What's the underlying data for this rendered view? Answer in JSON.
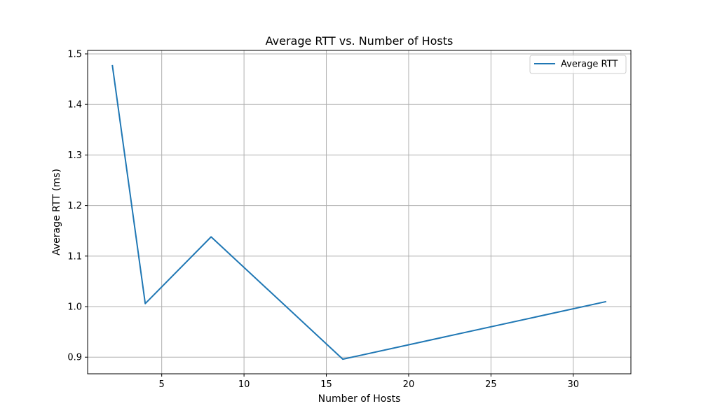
{
  "chart_data": {
    "type": "line",
    "title": "Average RTT vs. Number of Hosts",
    "xlabel": "Number of Hosts",
    "ylabel": "Average RTT (ms)",
    "x": [
      2,
      4,
      8,
      16,
      32
    ],
    "series": [
      {
        "name": "Average RTT",
        "values": [
          1.478,
          1.006,
          1.138,
          0.896,
          1.01
        ],
        "color": "#1f77b4"
      }
    ],
    "xlim": [
      0.5,
      33.5
    ],
    "ylim": [
      0.8671,
      1.5069
    ],
    "xticks": [
      "5",
      "10",
      "15",
      "20",
      "25",
      "30"
    ],
    "yticks": [
      "0.9",
      "1.0",
      "1.1",
      "1.2",
      "1.3",
      "1.4",
      "1.5"
    ],
    "grid": true,
    "legend_position": "top-right"
  }
}
